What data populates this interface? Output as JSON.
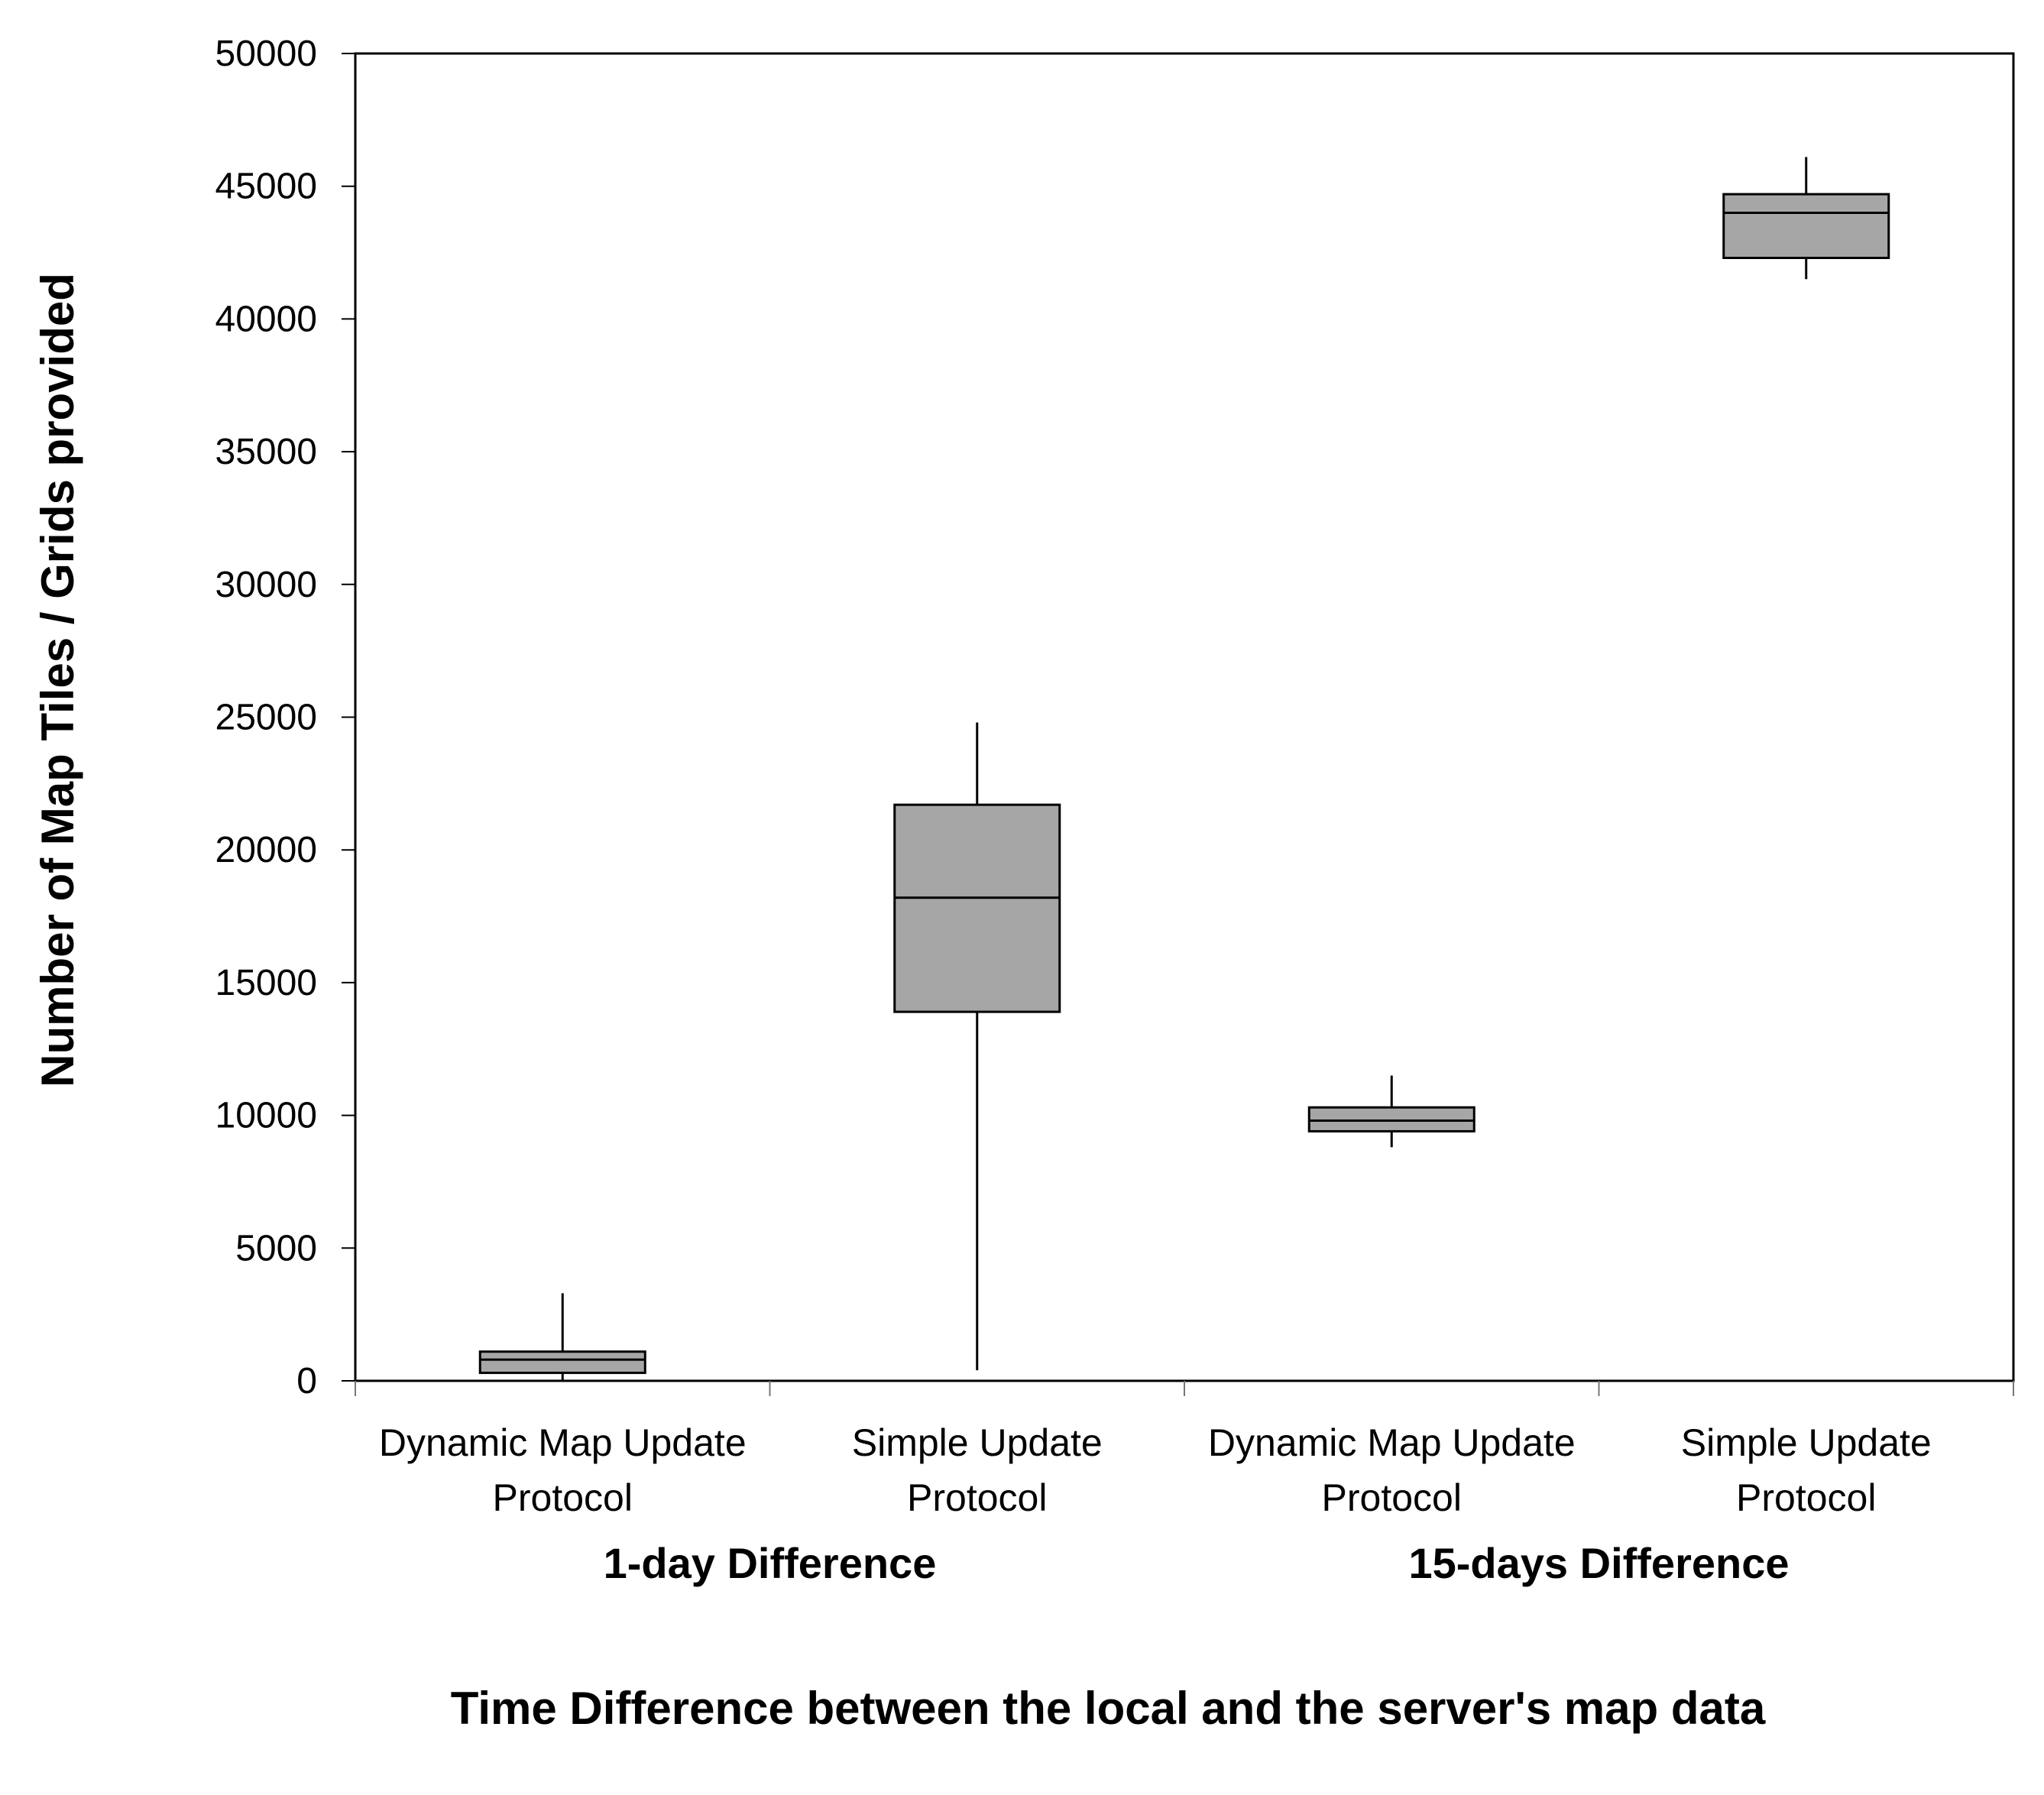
{
  "chart_data": {
    "type": "box",
    "xlabel": "Time Difference between the local and the server's map data",
    "ylabel": "Number of Map Tiles / Grids provided",
    "ylim": [
      0,
      50000
    ],
    "yticks": [
      "0",
      "5000",
      "10000",
      "15000",
      "20000",
      "25000",
      "30000",
      "35000",
      "40000",
      "45000",
      "50000"
    ],
    "grid": false,
    "legend": "none",
    "box_fill": "#a6a6a6",
    "groups": [
      {
        "label": "1-day Difference"
      },
      {
        "label": "15-days Difference"
      }
    ],
    "boxes": [
      {
        "line1": "Dynamic Map Update",
        "line2": "Protocol",
        "group": 0,
        "min": 0,
        "q1": 300,
        "median": 800,
        "q3": 1100,
        "max": 3300
      },
      {
        "line1": "Simple Update",
        "line2": "Protocol",
        "group": 0,
        "min": 400,
        "q1": 13900,
        "median": 18200,
        "q3": 21700,
        "max": 24800
      },
      {
        "line1": "Dynamic Map Update",
        "line2": "Protocol",
        "group": 1,
        "min": 8800,
        "q1": 9400,
        "median": 9800,
        "q3": 10300,
        "max": 11500
      },
      {
        "line1": "Simple Update",
        "line2": "Protocol",
        "group": 1,
        "min": 41500,
        "q1": 42300,
        "median": 44000,
        "q3": 44700,
        "max": 46100
      }
    ]
  }
}
